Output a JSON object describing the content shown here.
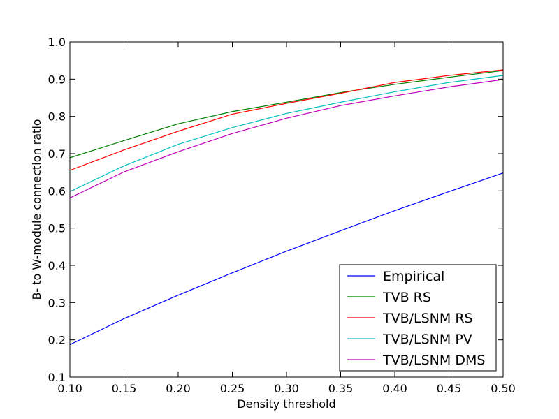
{
  "chart_data": {
    "type": "line",
    "title": "",
    "xlabel": "Density threshold",
    "ylabel": "B- to W-module connection ratio",
    "xlim": [
      0.1,
      0.5
    ],
    "ylim": [
      0.1,
      1.0
    ],
    "xticks": [
      "0.10",
      "0.15",
      "0.20",
      "0.25",
      "0.30",
      "0.35",
      "0.40",
      "0.45",
      "0.50"
    ],
    "yticks": [
      "0.1",
      "0.2",
      "0.3",
      "0.4",
      "0.5",
      "0.6",
      "0.7",
      "0.8",
      "0.9",
      "1.0"
    ],
    "grid": false,
    "legend_position": "bottom-right",
    "x": [
      0.1,
      0.15,
      0.2,
      0.25,
      0.3,
      0.35,
      0.4,
      0.45,
      0.5
    ],
    "series": [
      {
        "name": "Empirical",
        "color": "#0000ff",
        "values": [
          0.187,
          0.257,
          0.32,
          0.38,
          0.438,
          0.493,
          0.547,
          0.598,
          0.648
        ]
      },
      {
        "name": "TVB RS",
        "color": "#008000",
        "values": [
          0.689,
          0.735,
          0.78,
          0.813,
          0.838,
          0.864,
          0.886,
          0.905,
          0.923
        ]
      },
      {
        "name": "TVB/LSNM RS",
        "color": "#ff0000",
        "values": [
          0.655,
          0.71,
          0.76,
          0.806,
          0.835,
          0.862,
          0.891,
          0.91,
          0.925
        ]
      },
      {
        "name": "TVB/LSNM PV",
        "color": "#00bfbf",
        "values": [
          0.598,
          0.667,
          0.725,
          0.77,
          0.808,
          0.838,
          0.866,
          0.891,
          0.91
        ]
      },
      {
        "name": "TVB/LSNM DMS",
        "color": "#bf00bf",
        "values": [
          0.581,
          0.651,
          0.705,
          0.754,
          0.795,
          0.829,
          0.855,
          0.879,
          0.899
        ]
      }
    ]
  }
}
